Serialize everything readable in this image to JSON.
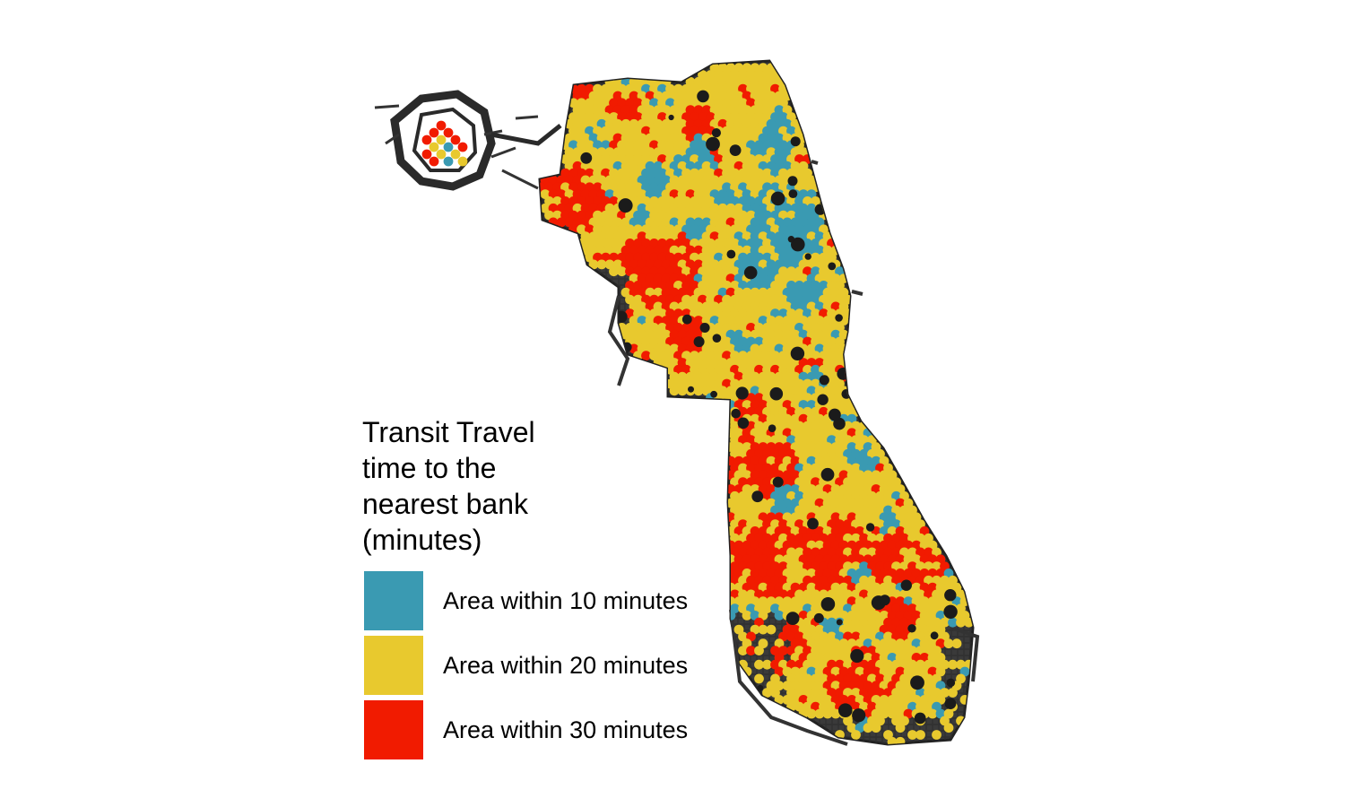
{
  "legend": {
    "title": "Transit Travel\ntime to the\nnearest bank\n(minutes)",
    "items": [
      {
        "label": "Area within 10 minutes",
        "color": "#3a9ab2"
      },
      {
        "label": "Area within 20 minutes",
        "color": "#e8c92e"
      },
      {
        "label": "Area within 30 minutes",
        "color": "#f11b00"
      }
    ]
  },
  "map": {
    "street_color": "#1a1a1a",
    "background": "#ffffff"
  }
}
